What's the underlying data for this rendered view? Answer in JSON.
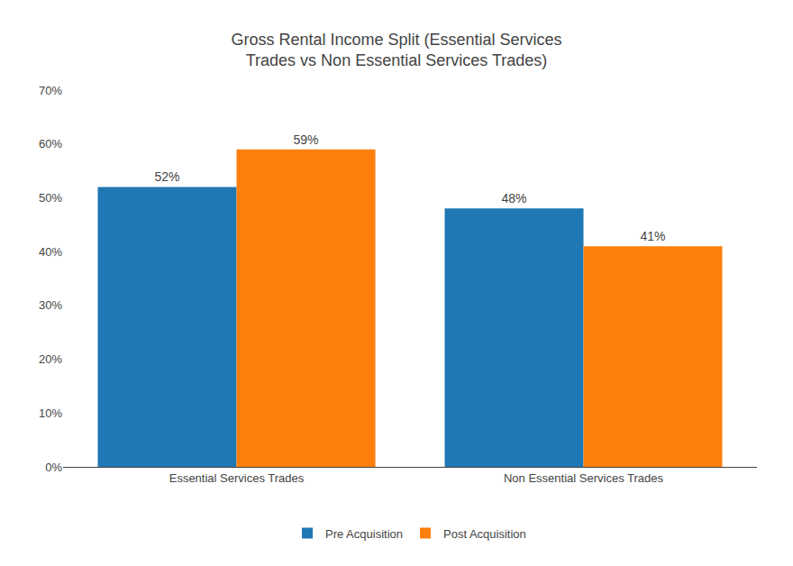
{
  "chart_data": {
    "type": "bar",
    "title": "Gross Rental Income Split (Essential Services\nTrades vs Non Essential Services Trades)",
    "categories": [
      "Essential Services Trades",
      "Non Essential Services Trades"
    ],
    "series": [
      {
        "name": "Pre Acquisition",
        "values": [
          52,
          48
        ],
        "value_labels": [
          "52%",
          "48%"
        ]
      },
      {
        "name": "Post Acquisition",
        "values": [
          59,
          41
        ],
        "value_labels": [
          "59%",
          "41%"
        ]
      }
    ],
    "ylim": [
      0,
      70
    ],
    "yticks": [
      {
        "value": 0,
        "label": "0%"
      },
      {
        "value": 10,
        "label": "10%"
      },
      {
        "value": 20,
        "label": "20%"
      },
      {
        "value": 30,
        "label": "30%"
      },
      {
        "value": 40,
        "label": "40%"
      },
      {
        "value": 50,
        "label": "50%"
      },
      {
        "value": 60,
        "label": "60%"
      },
      {
        "value": 70,
        "label": "70%"
      }
    ],
    "grid": false,
    "legend": "bottom",
    "data_labels": true
  }
}
